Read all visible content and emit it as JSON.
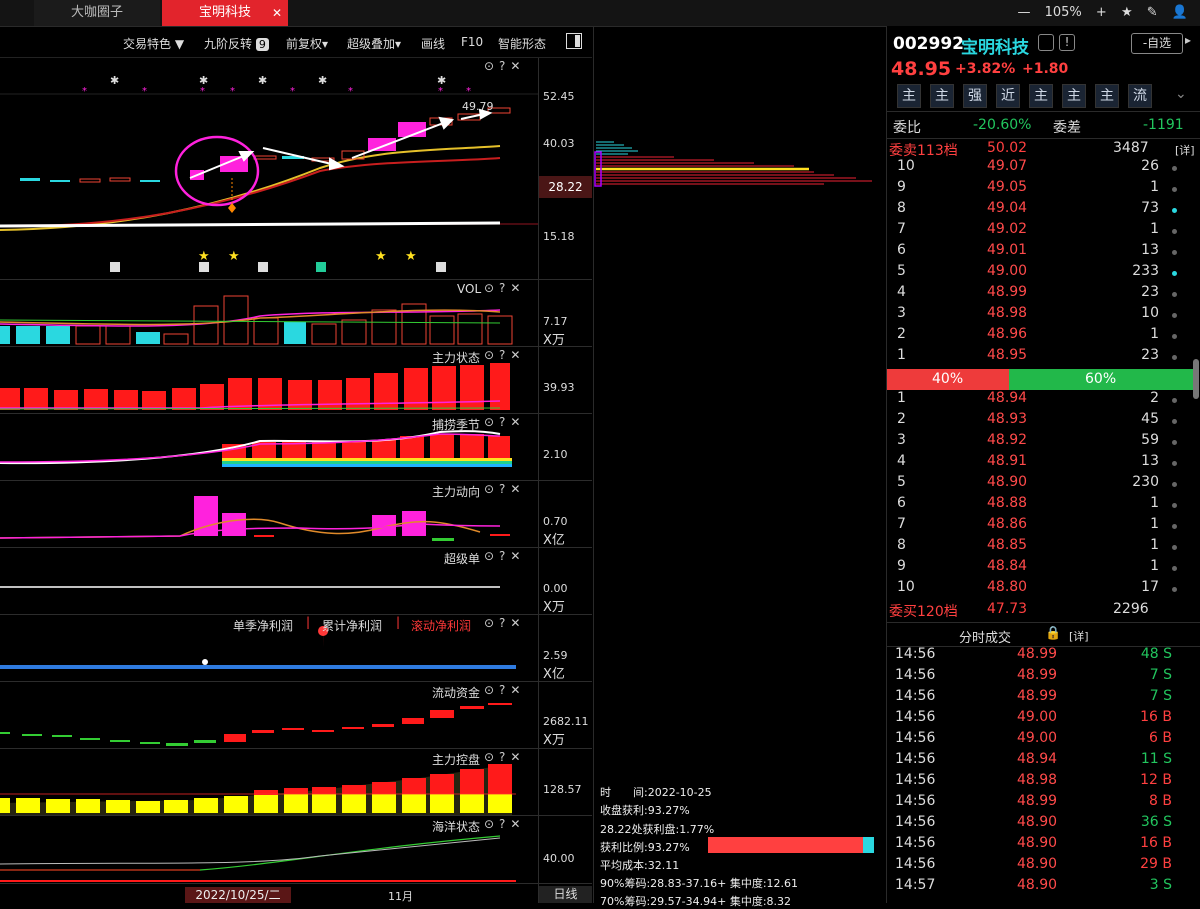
{
  "tabs": [
    {
      "label": "大咖圈子"
    },
    {
      "label": "宝明科技"
    }
  ],
  "top_right": {
    "zoom": "105%"
  },
  "toolbar": {
    "trade_color": "交易特色",
    "nine_turn": "九阶反转",
    "nine_badge": "9",
    "fq": "前复权",
    "overlay": "超级叠加",
    "draw": "画线",
    "f10": "F10",
    "smart": "智能形态"
  },
  "kline": {
    "y_labels": [
      "52.45",
      "40.03",
      "28.22",
      "15.18"
    ],
    "price_label": "49.79"
  },
  "panels": {
    "vol": {
      "name": "VOL",
      "value": "7.17",
      "unit": "X万"
    },
    "main_state": {
      "name": "主力状态",
      "value": "39.93"
    },
    "catch": {
      "name": "捕捞季节",
      "value": "2.10"
    },
    "main_dir": {
      "name": "主力动向",
      "value": "0.70",
      "unit": "X亿"
    },
    "super": {
      "name": "超级单",
      "value": "0.00",
      "unit": "X万"
    },
    "profit": {
      "single": "单季净利润",
      "cum": "累计净利润",
      "roll": "滚动净利润",
      "value": "2.59",
      "unit": "X亿"
    },
    "liquid": {
      "name": "流动资金",
      "value": "2682.11",
      "unit": "X万"
    },
    "control": {
      "name": "主力控盘",
      "value": "128.57"
    },
    "ocean": {
      "name": "海洋状态",
      "value": "40.00"
    }
  },
  "xaxis": {
    "date": "2022/10/25/二",
    "month": "11月",
    "period": "日线"
  },
  "chips": {
    "time": "时　　间:2022-10-25",
    "profit": "收盘获利:93.27%",
    "at": "28.22处获利盘:1.77%",
    "ratio": "获利比例:93.27%",
    "ratio_value": 0.9327,
    "cost": "平均成本:32.11",
    "c90": "90%筹码:28.83-37.16+ 集中度:12.61",
    "c70": "70%筹码:29.57-34.94+ 集中度:8.32"
  },
  "stock": {
    "code": "002992",
    "name": "宝明科技",
    "add_label": "-自选",
    "price": "48.95",
    "pct": "+3.82%",
    "chg": "+1.80"
  },
  "badges": [
    "主",
    "主",
    "强",
    "近",
    "主",
    "主",
    "主",
    "流"
  ],
  "ratio": {
    "wb_label": "委比",
    "wb": "-20.60%",
    "wc_label": "委差",
    "wc": "-1191"
  },
  "sell_head": {
    "label": "委卖113档",
    "price": "50.02",
    "vol": "3487",
    "detail": "[详]"
  },
  "sells": [
    {
      "n": "10",
      "p": "49.07",
      "v": "26"
    },
    {
      "n": "9",
      "p": "49.05",
      "v": "1"
    },
    {
      "n": "8",
      "p": "49.04",
      "v": "73"
    },
    {
      "n": "7",
      "p": "49.02",
      "v": "1"
    },
    {
      "n": "6",
      "p": "49.01",
      "v": "13"
    },
    {
      "n": "5",
      "p": "49.00",
      "v": "233"
    },
    {
      "n": "4",
      "p": "48.99",
      "v": "23"
    },
    {
      "n": "3",
      "p": "48.98",
      "v": "10"
    },
    {
      "n": "2",
      "p": "48.96",
      "v": "1"
    },
    {
      "n": "1",
      "p": "48.95",
      "v": "23"
    }
  ],
  "bar": {
    "sell_pct": "40%",
    "buy_pct": "60%",
    "sell_fraction": 0.4
  },
  "buys": [
    {
      "n": "1",
      "p": "48.94",
      "v": "2"
    },
    {
      "n": "2",
      "p": "48.93",
      "v": "45"
    },
    {
      "n": "3",
      "p": "48.92",
      "v": "59"
    },
    {
      "n": "4",
      "p": "48.91",
      "v": "13"
    },
    {
      "n": "5",
      "p": "48.90",
      "v": "230"
    },
    {
      "n": "6",
      "p": "48.88",
      "v": "1"
    },
    {
      "n": "7",
      "p": "48.86",
      "v": "1"
    },
    {
      "n": "8",
      "p": "48.85",
      "v": "1"
    },
    {
      "n": "9",
      "p": "48.84",
      "v": "1"
    },
    {
      "n": "10",
      "p": "48.80",
      "v": "17"
    }
  ],
  "buy_head": {
    "label": "委买120档",
    "price": "47.73",
    "vol": "2296"
  },
  "trades_head": {
    "label": "分时成交",
    "detail": "[详]"
  },
  "trades": [
    {
      "t": "14:56",
      "p": "48.99",
      "v": "48 S",
      "side": "S"
    },
    {
      "t": "14:56",
      "p": "48.99",
      "v": "7 S",
      "side": "S"
    },
    {
      "t": "14:56",
      "p": "48.99",
      "v": "7 S",
      "side": "S"
    },
    {
      "t": "14:56",
      "p": "49.00",
      "v": "16 B",
      "side": "B"
    },
    {
      "t": "14:56",
      "p": "49.00",
      "v": "6 B",
      "side": "B"
    },
    {
      "t": "14:56",
      "p": "48.94",
      "v": "11 S",
      "side": "S"
    },
    {
      "t": "14:56",
      "p": "48.98",
      "v": "12 B",
      "side": "B"
    },
    {
      "t": "14:56",
      "p": "48.99",
      "v": "8 B",
      "side": "B"
    },
    {
      "t": "14:56",
      "p": "48.90",
      "v": "36 S",
      "side": "S"
    },
    {
      "t": "14:56",
      "p": "48.90",
      "v": "16 B",
      "side": "B"
    },
    {
      "t": "14:56",
      "p": "48.90",
      "v": "29 B",
      "side": "B"
    },
    {
      "t": "14:57",
      "p": "48.90",
      "v": "3 S",
      "side": "S"
    }
  ]
}
